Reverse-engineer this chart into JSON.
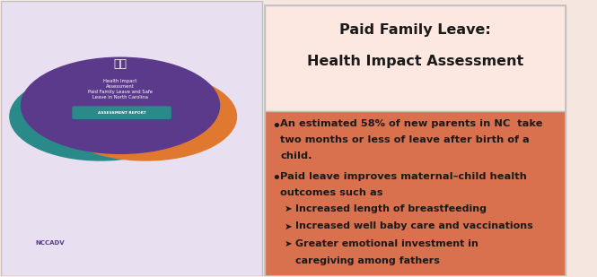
{
  "title_line1": "Paid Family Leave:",
  "title_line2": "Health Impact Assessment",
  "title_bg_color": "#fce8e0",
  "body_bg_color": "#d9714e",
  "outer_bg_color": "#f5e6e0",
  "text_color": "#1a1a1a",
  "border_color": "#c0c0c0",
  "bullet1_line1": "An estimated 58% of new parents in NC  take",
  "bullet1_line2": "two months or less of leave after birth of a",
  "bullet1_line3": "child.",
  "bullet2_line1": "Paid leave improves maternal–child health",
  "bullet2_line2": "outcomes such as",
  "sub1": "Increased length of breastfeeding",
  "sub2": "Increased well baby care and vaccinations",
  "sub3": "Greater emotional investment in",
  "sub3b": "caregiving among fathers",
  "left_panel_bg": "#e8dff0",
  "fig_width": 6.65,
  "fig_height": 3.09,
  "dpi": 100
}
